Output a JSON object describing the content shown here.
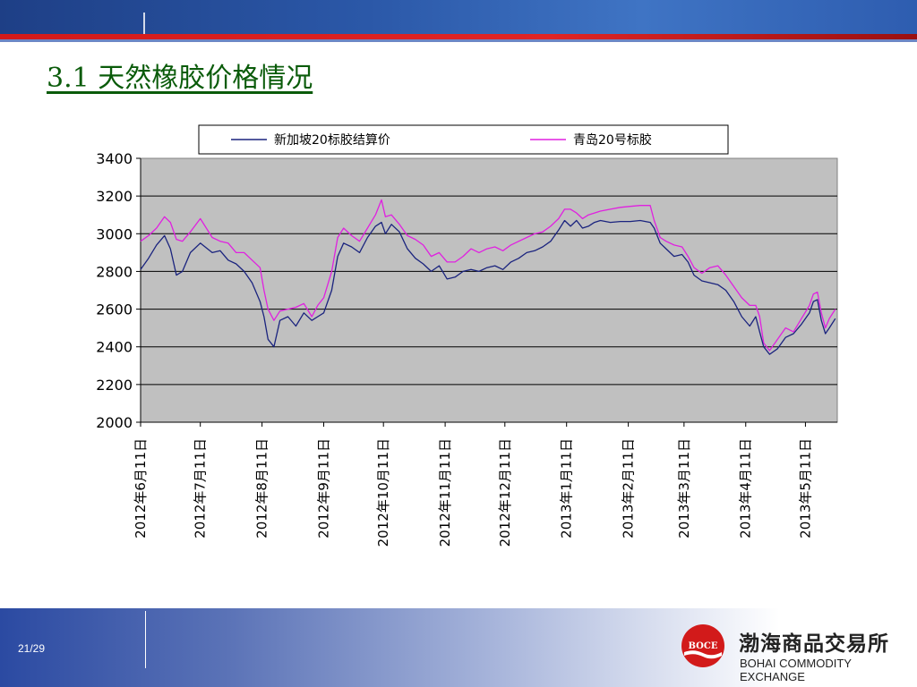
{
  "slide": {
    "title": "3.1 天然橡胶价格情况",
    "page_number": "21/29"
  },
  "logo": {
    "mark_text": "BOCE",
    "name_cn": "渤海商品交易所",
    "name_en": "BOHAI COMMODITY EXCHANGE"
  },
  "colors": {
    "banner": "#2b58a8",
    "accent_red": "#e02525",
    "title": "#0a5b0a",
    "plot_bg": "#c0c0c0",
    "series_singapore": "#1a237e",
    "series_qingdao": "#e020e0"
  },
  "chart_data": {
    "type": "line",
    "title": "",
    "xlabel": "",
    "ylabel": "",
    "ylim": [
      2000,
      3400
    ],
    "yticks": [
      2000,
      2200,
      2400,
      2600,
      2800,
      3000,
      3200,
      3400
    ],
    "grid": true,
    "legend_position": "top",
    "x_tick_labels": [
      "2012年6月11日",
      "2012年7月11日",
      "2012年8月11日",
      "2012年9月11日",
      "2012年10月11日",
      "2012年11月11日",
      "2012年12月11日",
      "2013年1月11日",
      "2013年2月11日",
      "2013年3月11日",
      "2013年4月11日",
      "2013年5月11日"
    ],
    "x_tick_positions": [
      0,
      30,
      61,
      92,
      122,
      153,
      183,
      214,
      245,
      273,
      304,
      334
    ],
    "series": [
      {
        "name": "新加坡20标胶结算价",
        "x": [
          0,
          4,
          8,
          12,
          15,
          18,
          21,
          25,
          30,
          36,
          40,
          44,
          48,
          52,
          56,
          60,
          62,
          64,
          67,
          70,
          74,
          78,
          82,
          86,
          89,
          92,
          96,
          99,
          102,
          106,
          110,
          114,
          118,
          121,
          123,
          126,
          130,
          134,
          138,
          142,
          146,
          150,
          154,
          158,
          162,
          166,
          170,
          174,
          178,
          182,
          186,
          190,
          194,
          198,
          202,
          206,
          210,
          213,
          216,
          219,
          222,
          225,
          228,
          231,
          236,
          241,
          246,
          251,
          256,
          258,
          261,
          264,
          268,
          272,
          275,
          278,
          282,
          286,
          290,
          294,
          298,
          302,
          306,
          309,
          311,
          313,
          316,
          320,
          324,
          328,
          332,
          336,
          338,
          340,
          342,
          344,
          346,
          349
        ],
        "y": [
          2810,
          2870,
          2940,
          2990,
          2920,
          2780,
          2800,
          2900,
          2950,
          2900,
          2910,
          2860,
          2840,
          2800,
          2740,
          2640,
          2560,
          2440,
          2400,
          2540,
          2560,
          2510,
          2580,
          2540,
          2560,
          2580,
          2700,
          2880,
          2950,
          2930,
          2900,
          2980,
          3040,
          3060,
          3000,
          3050,
          3010,
          2920,
          2870,
          2840,
          2800,
          2830,
          2760,
          2770,
          2800,
          2810,
          2800,
          2820,
          2830,
          2810,
          2850,
          2870,
          2900,
          2910,
          2930,
          2960,
          3020,
          3070,
          3040,
          3070,
          3030,
          3040,
          3060,
          3070,
          3060,
          3065,
          3065,
          3070,
          3060,
          3030,
          2950,
          2920,
          2880,
          2890,
          2850,
          2780,
          2750,
          2740,
          2730,
          2700,
          2640,
          2560,
          2510,
          2560,
          2480,
          2400,
          2360,
          2390,
          2450,
          2470,
          2520,
          2580,
          2640,
          2650,
          2540,
          2470,
          2500,
          2550
        ]
      },
      {
        "name": "青岛20号标胶",
        "x": [
          0,
          4,
          8,
          12,
          15,
          18,
          21,
          25,
          30,
          36,
          40,
          44,
          48,
          52,
          56,
          60,
          62,
          64,
          67,
          70,
          74,
          78,
          82,
          86,
          89,
          92,
          96,
          99,
          102,
          106,
          110,
          114,
          118,
          121,
          123,
          126,
          130,
          134,
          138,
          142,
          146,
          150,
          154,
          158,
          162,
          166,
          170,
          174,
          178,
          182,
          186,
          190,
          194,
          198,
          202,
          206,
          210,
          213,
          216,
          219,
          222,
          225,
          228,
          231,
          236,
          241,
          246,
          251,
          256,
          258,
          261,
          264,
          268,
          272,
          275,
          278,
          282,
          286,
          290,
          294,
          298,
          302,
          306,
          309,
          311,
          313,
          316,
          320,
          324,
          328,
          332,
          336,
          338,
          340,
          342,
          344,
          346,
          349
        ],
        "y": [
          2960,
          2990,
          3030,
          3090,
          3060,
          2970,
          2960,
          3010,
          3080,
          2980,
          2960,
          2950,
          2900,
          2900,
          2860,
          2820,
          2700,
          2600,
          2540,
          2590,
          2600,
          2610,
          2630,
          2560,
          2620,
          2660,
          2800,
          2980,
          3030,
          2990,
          2960,
          3030,
          3100,
          3180,
          3090,
          3100,
          3050,
          2990,
          2970,
          2940,
          2880,
          2900,
          2850,
          2850,
          2880,
          2920,
          2900,
          2920,
          2930,
          2910,
          2940,
          2960,
          2980,
          3000,
          3010,
          3040,
          3080,
          3130,
          3130,
          3110,
          3080,
          3100,
          3110,
          3120,
          3130,
          3140,
          3145,
          3150,
          3150,
          3070,
          2980,
          2960,
          2940,
          2930,
          2880,
          2820,
          2790,
          2820,
          2830,
          2780,
          2720,
          2660,
          2620,
          2620,
          2560,
          2420,
          2380,
          2440,
          2500,
          2480,
          2550,
          2620,
          2680,
          2690,
          2580,
          2500,
          2550,
          2600
        ]
      }
    ]
  }
}
